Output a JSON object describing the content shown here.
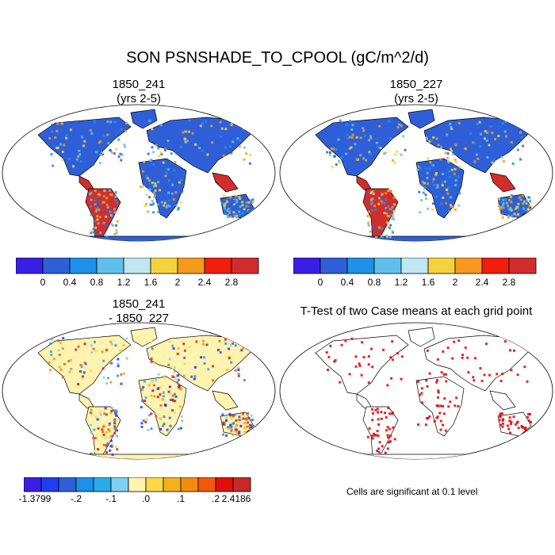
{
  "title": "SON PSNSHADE_TO_CPOOL (gC/m^2/d)",
  "panels": [
    {
      "id": "p1",
      "line1": "1850_241",
      "line2": "(yrs 2-5)"
    },
    {
      "id": "p2",
      "line1": "1850_227",
      "line2": "(yrs 2-5)"
    },
    {
      "id": "p3",
      "line1": "1850_241",
      "line2": "- 1850_227"
    },
    {
      "id": "p4",
      "line1": "T-Test of two Case means at each grid point",
      "line2": ""
    }
  ],
  "colorbar_main": {
    "colors": [
      "#3b1ee6",
      "#2f5fd8",
      "#1e90e8",
      "#5fc0ec",
      "#bfe6f2",
      "#f5d23c",
      "#f59a1e",
      "#f01e0a",
      "#d22d2d"
    ],
    "labels": [
      "0",
      "0.4",
      "0.8",
      "1.2",
      "1.6",
      "2",
      "2.4",
      "2.8"
    ]
  },
  "colorbar_diff": {
    "colors": [
      "#3b1ee6",
      "#1e3ef0",
      "#2f5fd8",
      "#1e90e8",
      "#2aaae6",
      "#7fcff0",
      "#fff3b0",
      "#fad84a",
      "#f5b020",
      "#f58a10",
      "#f05a0a",
      "#e0100a",
      "#c82828"
    ],
    "labels": [
      "-1.3799",
      "-.2",
      "-.1",
      ".0",
      ".1",
      ".2",
      "2.4186"
    ]
  },
  "significance_note": "Cells are significant at 0.1 level"
}
